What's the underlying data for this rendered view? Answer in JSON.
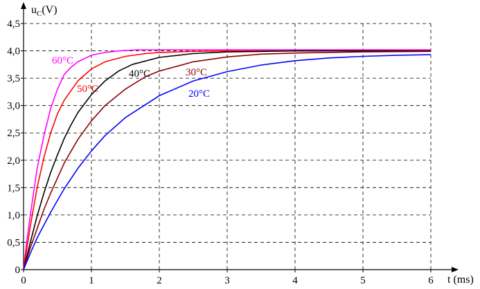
{
  "chart_data": {
    "type": "line",
    "title": "",
    "xlabel": "t (ms)",
    "ylabel_main": "u",
    "ylabel_sub": "C",
    "ylabel_unit": "(V)",
    "xlim": [
      0,
      6
    ],
    "ylim": [
      0,
      4.5
    ],
    "x_ticks": [
      0,
      1,
      2,
      3,
      4,
      5,
      6
    ],
    "x_tick_labels": [
      "0",
      "1",
      "2",
      "3",
      "4",
      "5",
      "6"
    ],
    "y_ticks": [
      0,
      0.5,
      1.0,
      1.5,
      2.0,
      2.5,
      3.0,
      3.5,
      4.0,
      4.5
    ],
    "y_tick_labels": [
      "0",
      "0,5",
      "1,0",
      "1,5",
      "2,0",
      "2,5",
      "3,0",
      "3,5",
      "4,0",
      "4,5"
    ],
    "grid": "dashed",
    "legend": "inline labels next to curves",
    "series": [
      {
        "name": "60°C",
        "color": "#ff00ff",
        "x": [
          0,
          0.05,
          0.1,
          0.2,
          0.3,
          0.4,
          0.5,
          0.6,
          0.7,
          0.8,
          1.0,
          1.2,
          1.4,
          1.7,
          2.0,
          3.0,
          4.0,
          5.0,
          6.0
        ],
        "y": [
          0,
          0.55,
          1.0,
          1.85,
          2.45,
          2.95,
          3.3,
          3.57,
          3.7,
          3.8,
          3.92,
          3.97,
          4.0,
          4.02,
          4.02,
          4.02,
          4.02,
          4.02,
          4.02
        ]
      },
      {
        "name": "50°C",
        "color": "#ff0000",
        "x": [
          0,
          0.1,
          0.2,
          0.3,
          0.4,
          0.5,
          0.6,
          0.8,
          1.0,
          1.2,
          1.5,
          1.8,
          2.0,
          2.5,
          3.0,
          4.0,
          5.0,
          6.0
        ],
        "y": [
          0,
          0.8,
          1.5,
          2.05,
          2.5,
          2.85,
          3.1,
          3.45,
          3.67,
          3.8,
          3.9,
          3.95,
          3.97,
          3.99,
          4.0,
          4.0,
          4.0,
          4.0
        ]
      },
      {
        "name": "40°C",
        "color": "#000000",
        "x": [
          0,
          0.1,
          0.2,
          0.3,
          0.4,
          0.5,
          0.6,
          0.7,
          0.8,
          1.0,
          1.2,
          1.4,
          1.6,
          2.0,
          2.5,
          3.0,
          4.0,
          5.0,
          6.0
        ],
        "y": [
          0,
          0.5,
          0.98,
          1.4,
          1.78,
          2.1,
          2.4,
          2.65,
          2.87,
          3.2,
          3.45,
          3.63,
          3.75,
          3.88,
          3.95,
          3.98,
          4.0,
          4.0,
          4.0
        ]
      },
      {
        "name": "30°C",
        "color": "#8b0000",
        "x": [
          0,
          0.1,
          0.2,
          0.3,
          0.4,
          0.6,
          0.8,
          1.0,
          1.2,
          1.5,
          1.8,
          2.0,
          2.5,
          3.0,
          3.5,
          4.0,
          5.0,
          6.0
        ],
        "y": [
          0,
          0.4,
          0.75,
          1.1,
          1.4,
          1.95,
          2.38,
          2.72,
          3.0,
          3.3,
          3.53,
          3.63,
          3.8,
          3.89,
          3.94,
          3.96,
          3.98,
          3.99
        ]
      },
      {
        "name": "20°C",
        "color": "#0000ff",
        "x": [
          0,
          0.1,
          0.2,
          0.4,
          0.6,
          0.8,
          1.0,
          1.2,
          1.5,
          2.0,
          2.5,
          3.0,
          3.5,
          4.0,
          4.5,
          5.0,
          5.5,
          6.0
        ],
        "y": [
          0,
          0.3,
          0.58,
          1.05,
          1.48,
          1.85,
          2.17,
          2.45,
          2.78,
          3.18,
          3.45,
          3.62,
          3.74,
          3.82,
          3.87,
          3.9,
          3.92,
          3.93
        ]
      }
    ]
  }
}
